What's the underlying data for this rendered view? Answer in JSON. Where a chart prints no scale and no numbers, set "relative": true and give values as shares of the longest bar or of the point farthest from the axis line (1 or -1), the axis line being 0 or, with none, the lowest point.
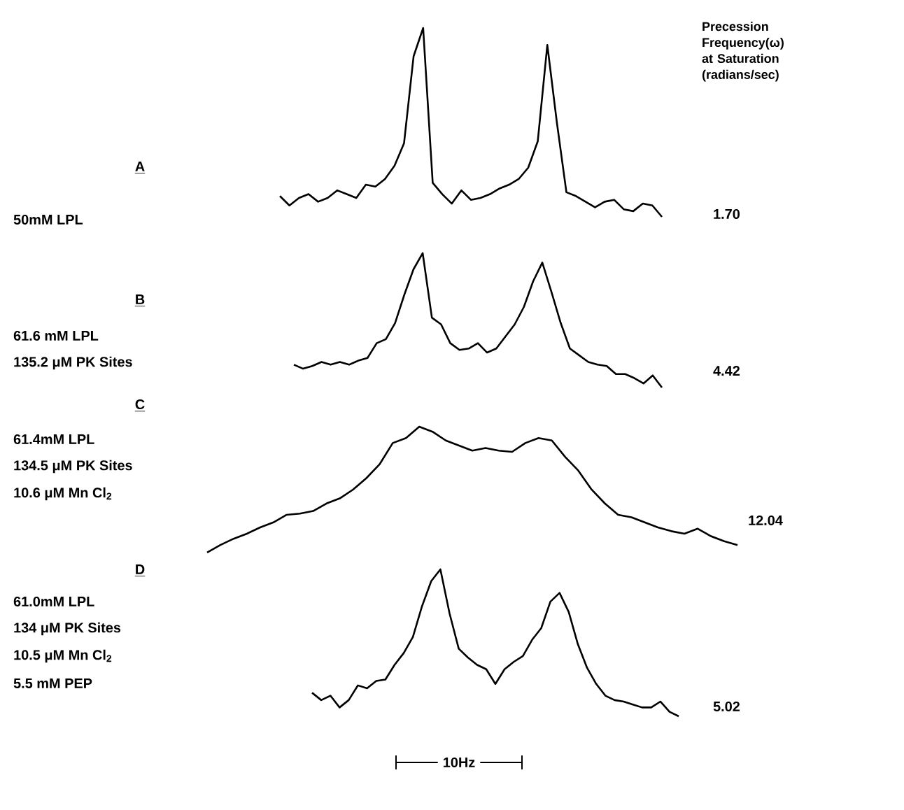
{
  "chart_data": [
    {
      "type": "line",
      "relative": true,
      "annotations": [
        "A",
        "50mM LPL",
        "1.70"
      ],
      "y2label": "Precession Frequency(ω) at Saturation (radians/sec)",
      "color": "#000000",
      "categories": [
        null,
        null,
        null,
        null,
        null,
        null,
        null,
        null,
        null,
        null,
        null,
        null,
        null,
        null,
        null,
        null,
        null,
        null,
        null,
        null,
        null,
        null,
        null,
        null,
        null,
        null,
        null,
        null,
        null,
        null,
        null,
        null,
        null,
        null,
        null,
        null,
        null,
        null,
        null,
        null,
        null
      ],
      "values": [
        0.11,
        0.06,
        0.1,
        0.12,
        0.08,
        0.1,
        0.14,
        0.12,
        0.1,
        0.17,
        0.16,
        0.2,
        0.27,
        0.39,
        0.85,
        1,
        0.18,
        0.12,
        0.07,
        0.14,
        0.09,
        0.1,
        0.12,
        0.15,
        0.17,
        0.2,
        0.26,
        0.4,
        0.91,
        0.5,
        0.13,
        0.11,
        0.08,
        0.05,
        0.08,
        0.09,
        0.04,
        0.03,
        0.07,
        0.06,
        0
      ]
    },
    {
      "type": "line",
      "relative": true,
      "annotations": [
        "B",
        "61.6 mM LPL",
        "135.2 μM PK Sites",
        "4.42"
      ],
      "color": "#000000",
      "categories": [
        null,
        null,
        null,
        null,
        null,
        null,
        null,
        null,
        null,
        null,
        null,
        null,
        null,
        null,
        null,
        null,
        null,
        null,
        null,
        null,
        null,
        null,
        null,
        null,
        null,
        null,
        null,
        null,
        null,
        null,
        null,
        null,
        null,
        null,
        null,
        null,
        null,
        null,
        null,
        null,
        null
      ],
      "values": [
        0.17,
        0.14,
        0.16,
        0.19,
        0.17,
        0.19,
        0.17,
        0.2,
        0.22,
        0.33,
        0.36,
        0.48,
        0.69,
        0.88,
        1,
        0.52,
        0.47,
        0.33,
        0.28,
        0.29,
        0.33,
        0.26,
        0.29,
        0.38,
        0.47,
        0.6,
        0.79,
        0.93,
        0.71,
        0.48,
        0.29,
        0.24,
        0.19,
        0.17,
        0.16,
        0.1,
        0.1,
        0.07,
        0.03,
        0.09,
        0
      ]
    },
    {
      "type": "line",
      "relative": true,
      "annotations": [
        "C",
        "61.4mM LPL",
        "134.5 μM PK Sites",
        "10.6 μM Mn Cl$_{2}$",
        "12.04"
      ],
      "color": "#000000",
      "categories": [
        null,
        null,
        null,
        null,
        null,
        null,
        null,
        null,
        null,
        null,
        null,
        null,
        null,
        null,
        null,
        null,
        null,
        null,
        null,
        null,
        null,
        null,
        null,
        null,
        null,
        null,
        null,
        null,
        null,
        null,
        null,
        null,
        null,
        null,
        null,
        null,
        null,
        null,
        null,
        null,
        null
      ],
      "values": [
        0,
        0.06,
        0.11,
        0.15,
        0.2,
        0.24,
        0.3,
        0.31,
        0.33,
        0.39,
        0.43,
        0.5,
        0.59,
        0.7,
        0.87,
        0.91,
        1,
        0.96,
        0.89,
        0.85,
        0.81,
        0.83,
        0.81,
        0.8,
        0.87,
        0.91,
        0.89,
        0.76,
        0.65,
        0.5,
        0.39,
        0.3,
        0.28,
        0.24,
        0.2,
        0.17,
        0.15,
        0.19,
        0.13,
        0.09,
        0.06
      ]
    },
    {
      "type": "line",
      "relative": true,
      "annotations": [
        "D",
        "61.0mM LPL",
        "134 μM PK Sites",
        "10.5 μM Mn Cl$_{2}$",
        "5.5 mM PEP",
        "5.02"
      ],
      "xlabel": "10Hz",
      "color": "#000000",
      "categories": [
        null,
        null,
        null,
        null,
        null,
        null,
        null,
        null,
        null,
        null,
        null,
        null,
        null,
        null,
        null,
        null,
        null,
        null,
        null,
        null,
        null,
        null,
        null,
        null,
        null,
        null,
        null,
        null,
        null,
        null,
        null,
        null,
        null,
        null,
        null,
        null,
        null,
        null,
        null,
        null,
        null
      ],
      "values": [
        0.16,
        0.11,
        0.14,
        0.06,
        0.11,
        0.21,
        0.19,
        0.24,
        0.25,
        0.35,
        0.43,
        0.54,
        0.75,
        0.92,
        1,
        0.7,
        0.46,
        0.4,
        0.35,
        0.32,
        0.22,
        0.32,
        0.37,
        0.41,
        0.52,
        0.6,
        0.78,
        0.84,
        0.71,
        0.49,
        0.33,
        0.22,
        0.14,
        0.11,
        0.1,
        0.08,
        0.06,
        0.06,
        0.1,
        0.03,
        0
      ]
    }
  ]
}
